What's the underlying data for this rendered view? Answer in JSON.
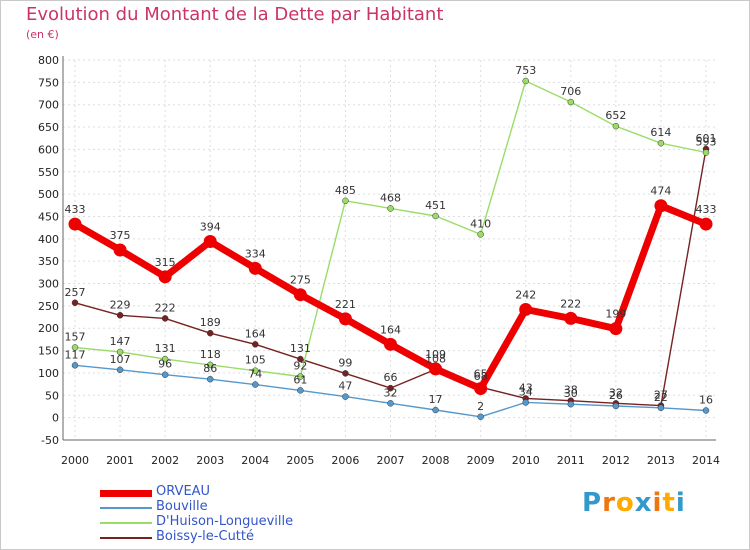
{
  "title": "Evolution du Montant de la Dette par Habitant",
  "unit": "(en €)",
  "logo": "Proxiti",
  "chart_data": {
    "type": "line",
    "x": [
      "2000",
      "2001",
      "2002",
      "2003",
      "2004",
      "2005",
      "2006",
      "2007",
      "2008",
      "2009",
      "2010",
      "2011",
      "2012",
      "2013",
      "2014"
    ],
    "ylim": [
      -50,
      800
    ],
    "yticks": [
      -50,
      0,
      50,
      100,
      150,
      200,
      250,
      300,
      350,
      400,
      450,
      500,
      550,
      600,
      650,
      700,
      750,
      800
    ],
    "grid": true,
    "legend_position": "bottom-left",
    "series": [
      {
        "name": "ORVEAU",
        "color": "#ee0000",
        "values": [
          433,
          375,
          315,
          394,
          334,
          275,
          221,
          164,
          109,
          65,
          242,
          222,
          199,
          474,
          433
        ],
        "labels": [
          "433",
          "375",
          "315",
          "394",
          "334",
          "275",
          "221",
          "164",
          "109",
          "65",
          "242",
          "222",
          "199",
          "474",
          "433"
        ]
      },
      {
        "name": "Bouville",
        "color": "#5599cc",
        "values": [
          117,
          107,
          96,
          86,
          74,
          61,
          47,
          32,
          17,
          2,
          34,
          30,
          26,
          22,
          16
        ],
        "labels": [
          "117",
          "107",
          "96",
          "86",
          "74",
          "61",
          "47",
          "32",
          "17",
          "2",
          "34",
          "30",
          "26",
          "22",
          "16"
        ]
      },
      {
        "name": "D'Huison-Longueville",
        "color": "#99dd66",
        "values": [
          157,
          147,
          131,
          118,
          105,
          92,
          485,
          468,
          451,
          410,
          753,
          706,
          652,
          614,
          593
        ],
        "labels": [
          "157",
          "147",
          "131",
          "118",
          "105",
          "92",
          "485",
          "468",
          "451",
          "410",
          "753",
          "706",
          "652",
          "614",
          "593"
        ]
      },
      {
        "name": "Boissy-le-Cutté",
        "color": "#772222",
        "values": [
          257,
          229,
          222,
          189,
          164,
          131,
          99,
          66,
          108,
          68,
          43,
          38,
          32,
          27,
          601
        ],
        "labels": [
          "257",
          "229",
          "222",
          "189",
          "164",
          "131",
          "99",
          "66",
          "108",
          "68",
          "43",
          "38",
          "32",
          "27",
          "601"
        ]
      }
    ]
  }
}
